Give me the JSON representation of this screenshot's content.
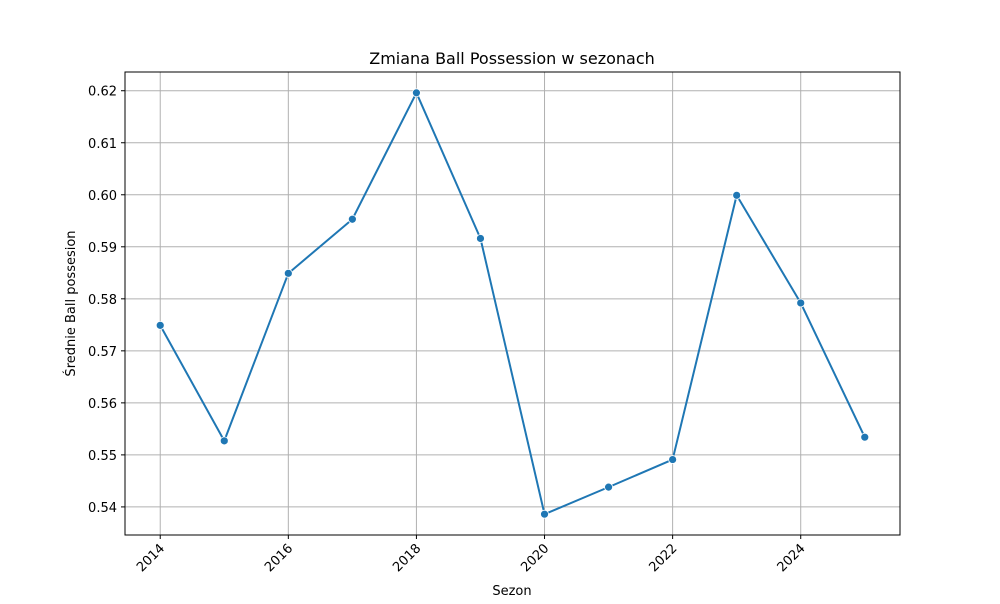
{
  "chart_data": {
    "type": "line",
    "title": "Zmiana Ball Possession w sezonach",
    "xlabel": "Sezon",
    "ylabel": "Średnie Ball possesion",
    "x": [
      2014,
      2015,
      2016,
      2017,
      2018,
      2019,
      2020,
      2021,
      2022,
      2023,
      2024,
      2025
    ],
    "series": [
      {
        "values": [
          0.5749,
          0.5527,
          0.5849,
          0.5953,
          0.6196,
          0.5916,
          0.5386,
          0.5438,
          0.5491,
          0.5999,
          0.5792,
          0.5534
        ],
        "color": "#1f77b4"
      }
    ],
    "xlim": [
      2013.45,
      2025.55
    ],
    "ylim": [
      0.5346,
      0.6236
    ],
    "xticks": [
      {
        "value": 2014,
        "label": "2014"
      },
      {
        "value": 2016,
        "label": "2016"
      },
      {
        "value": 2018,
        "label": "2018"
      },
      {
        "value": 2020,
        "label": "2020"
      },
      {
        "value": 2022,
        "label": "2022"
      },
      {
        "value": 2024,
        "label": "2024"
      }
    ],
    "yticks": [
      {
        "value": 0.54,
        "label": "0.54"
      },
      {
        "value": 0.55,
        "label": "0.55"
      },
      {
        "value": 0.56,
        "label": "0.56"
      },
      {
        "value": 0.57,
        "label": "0.57"
      },
      {
        "value": 0.58,
        "label": "0.58"
      },
      {
        "value": 0.59,
        "label": "0.59"
      },
      {
        "value": 0.6,
        "label": "0.60"
      },
      {
        "value": 0.61,
        "label": "0.61"
      },
      {
        "value": 0.62,
        "label": "0.62"
      }
    ],
    "grid": true,
    "marker": "circle",
    "x_tick_rotation": 45
  }
}
